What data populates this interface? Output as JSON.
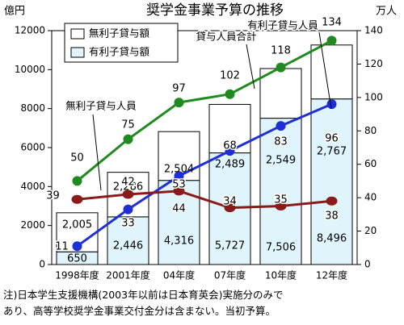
{
  "chart_data": {
    "type": "bar",
    "title": "奨学金事業予算の推移",
    "left_unit": "億円",
    "right_unit": "万人",
    "categories": [
      "1998年度",
      "2001年度",
      "04年度",
      "07年度",
      "10年度",
      "12年度"
    ],
    "left_axis": {
      "min": 0,
      "max": 12000,
      "ticks": [
        0,
        2000,
        4000,
        6000,
        8000,
        10000,
        12000
      ]
    },
    "right_axis": {
      "min": 0,
      "max": 140,
      "ticks": [
        0,
        20,
        40,
        60,
        80,
        100,
        120,
        140
      ]
    },
    "bar_series": [
      {
        "name": "有利子貸与額",
        "values": [
          650,
          2446,
          4316,
          5727,
          7506,
          8496
        ],
        "color": "#dff5fb"
      },
      {
        "name": "無利子貸与額",
        "values": [
          2005,
          2286,
          2504,
          2489,
          2549,
          2767
        ],
        "color": "#ffffff"
      }
    ],
    "line_series": [
      {
        "name": "貸与人員合計",
        "values": [
          50,
          75,
          97,
          102,
          118,
          134
        ],
        "color": "#1f8a1f"
      },
      {
        "name": "有利子貸与人員",
        "values": [
          11,
          33,
          53,
          68,
          83,
          96
        ],
        "color": "#1f2fd6"
      },
      {
        "name": "無利子貸与人員",
        "values": [
          39,
          42,
          44,
          34,
          35,
          38
        ],
        "color": "#8b1a1a"
      }
    ],
    "legend": [
      "無利子貸与額",
      "有利子貸与額"
    ]
  },
  "footnote": {
    "line1": "注)日本学生支援機構(2003年以前は日本育英会)実施分のみで",
    "line2": "あり、高等学校奨学金事業交付金分は含まない。当初予算。"
  }
}
